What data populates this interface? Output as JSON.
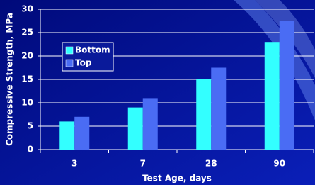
{
  "chart_data": {
    "type": "bar",
    "x_label": "Test Age, days",
    "y_label": "Compressive Strength, MPa",
    "categories": [
      "3",
      "7",
      "28",
      "90"
    ],
    "series": [
      {
        "name": "Bottom",
        "color": "#33ffff",
        "values": [
          6,
          9,
          15,
          23
        ]
      },
      {
        "name": "Top",
        "color": "#4a6cf4",
        "values": [
          7,
          11,
          17.5,
          27.5
        ]
      }
    ],
    "ylim": [
      0,
      30
    ],
    "yticks": [
      0,
      5,
      10,
      15,
      20,
      25,
      30
    ],
    "grid": true
  }
}
